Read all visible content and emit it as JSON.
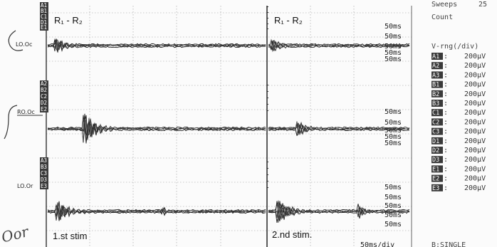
{
  "header": {
    "sweeps_label": "Sweeps",
    "sweeps_value": "25",
    "count_label": "Count"
  },
  "titles": {
    "left": "R₁ - R₂",
    "right": "R₁ - R₂"
  },
  "groups": [
    {
      "name": "LO.Oc",
      "rows": [
        "A1",
        "B1",
        "C1",
        "D1",
        "E1"
      ],
      "scale": [
        "50ms",
        "50ms",
        "50ms",
        "50ms",
        "50ms"
      ]
    },
    {
      "name": "RO.Oc",
      "rows": [
        "A2",
        "B2",
        "C2",
        "D2",
        "E2"
      ],
      "scale": [
        "50ms",
        "50ms",
        "50ms",
        "50ms",
        "50ms"
      ]
    },
    {
      "name": "LO.Or",
      "rows": [
        "A3",
        "B3",
        "C3",
        "D3",
        "E3"
      ],
      "scale": [
        "50ms",
        "50ms",
        "50ms",
        "50ms",
        "50ms"
      ]
    }
  ],
  "stim_labels": {
    "left": "1.st stim",
    "right": "2.nd stim."
  },
  "timebase": "50ms/div",
  "handwritten": {
    "top": "LO.Oc",
    "middle": "RO.Oc",
    "bottom": "Oor"
  },
  "vrange": {
    "title": "V-rng(/div)",
    "rows": [
      {
        "ch": "A1",
        "val": "200µV"
      },
      {
        "ch": "A2",
        "val": "200µV"
      },
      {
        "ch": "A3",
        "val": "200µV"
      },
      {
        "ch": "B1",
        "val": "200µV"
      },
      {
        "ch": "B2",
        "val": "200µV"
      },
      {
        "ch": "B3",
        "val": "200µV"
      },
      {
        "ch": "C1",
        "val": "200µV"
      },
      {
        "ch": "C2",
        "val": "200µV"
      },
      {
        "ch": "C3",
        "val": "200µV"
      },
      {
        "ch": "D1",
        "val": "200µV"
      },
      {
        "ch": "D2",
        "val": "200µV"
      },
      {
        "ch": "D3",
        "val": "200µV"
      },
      {
        "ch": "E1",
        "val": "200µV"
      },
      {
        "ch": "E2",
        "val": "200µV"
      },
      {
        "ch": "E3",
        "val": "200µV"
      }
    ]
  },
  "mode": "B:SINGLE"
}
